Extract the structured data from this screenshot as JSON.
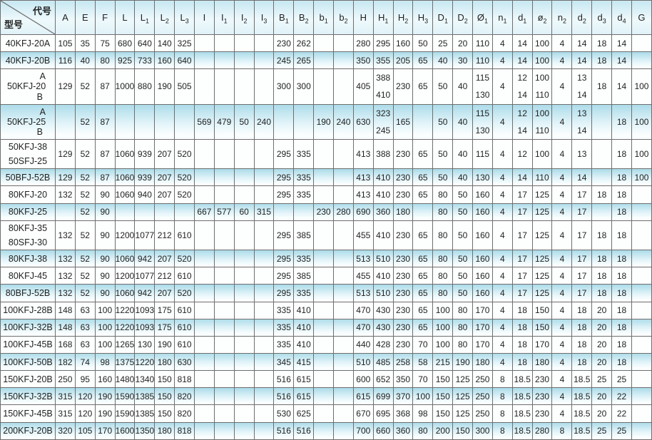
{
  "table": {
    "corner": {
      "top_right": "代号",
      "bottom_left": "型号"
    },
    "columns": [
      {
        "b": "A",
        "s": ""
      },
      {
        "b": "E",
        "s": ""
      },
      {
        "b": "F",
        "s": ""
      },
      {
        "b": "L",
        "s": ""
      },
      {
        "b": "L",
        "s": "1"
      },
      {
        "b": "L",
        "s": "2"
      },
      {
        "b": "L",
        "s": "3"
      },
      {
        "b": "I",
        "s": ""
      },
      {
        "b": "I",
        "s": "1"
      },
      {
        "b": "I",
        "s": "2"
      },
      {
        "b": "I",
        "s": "3"
      },
      {
        "b": "B",
        "s": "1"
      },
      {
        "b": "B",
        "s": "2"
      },
      {
        "b": "b",
        "s": "1"
      },
      {
        "b": "b",
        "s": "2"
      },
      {
        "b": "H",
        "s": ""
      },
      {
        "b": "H",
        "s": "1"
      },
      {
        "b": "H",
        "s": "2"
      },
      {
        "b": "H",
        "s": "3"
      },
      {
        "b": "D",
        "s": "1"
      },
      {
        "b": "D",
        "s": "2"
      },
      {
        "b": "Ø",
        "s": "1"
      },
      {
        "b": "n",
        "s": "1"
      },
      {
        "b": "d",
        "s": "1"
      },
      {
        "b": "ø",
        "s": "2"
      },
      {
        "b": "n",
        "s": "2"
      },
      {
        "b": "d",
        "s": "2"
      },
      {
        "b": "d",
        "s": "3"
      },
      {
        "b": "d",
        "s": "4"
      },
      {
        "b": "G",
        "s": ""
      }
    ],
    "rows": [
      {
        "model": [
          "40KFJ-20A"
        ],
        "shaded": false,
        "cells": [
          "105",
          "35",
          "75",
          "680",
          "640",
          "140",
          "325",
          "",
          "",
          "",
          "",
          "230",
          "262",
          "",
          "",
          "280",
          "295",
          "160",
          "50",
          "25",
          "20",
          "110",
          "4",
          "14",
          "100",
          "4",
          "14",
          "18",
          "14",
          ""
        ]
      },
      {
        "model": [
          "40KFJ-20B"
        ],
        "shaded": true,
        "cells": [
          "116",
          "40",
          "80",
          "925",
          "733",
          "160",
          "640",
          "",
          "",
          "",
          "",
          "245",
          "265",
          "",
          "",
          "350",
          "355",
          "205",
          "65",
          "40",
          "30",
          "110",
          "4",
          "14",
          "100",
          "4",
          "14",
          "18",
          "14",
          ""
        ]
      },
      {
        "model": [
          "50KFJ-20"
        ],
        "ab": [
          "A",
          "B"
        ],
        "shaded": false,
        "cells": [
          "129",
          "52",
          "87",
          "1000",
          "880",
          "190",
          "505",
          "",
          "",
          "",
          "",
          "300",
          "300",
          "",
          "",
          "405",
          [
            "388",
            "410"
          ],
          "230",
          "65",
          "50",
          "40",
          [
            "115",
            "130"
          ],
          "4",
          [
            "12",
            "14"
          ],
          [
            "100",
            "110"
          ],
          "4",
          [
            "13",
            "14"
          ],
          "18",
          "14",
          "100"
        ]
      },
      {
        "model": [
          "50KFJ-25"
        ],
        "ab": [
          "A",
          "B"
        ],
        "shaded": true,
        "cells": [
          "",
          "52",
          "87",
          "",
          "",
          "",
          "",
          "569",
          "479",
          "50",
          "240",
          "",
          "",
          "190",
          "240",
          "630",
          [
            "323",
            "245"
          ],
          "165",
          "",
          "50",
          "40",
          [
            "115",
            "130"
          ],
          "4",
          [
            "12",
            "14"
          ],
          [
            "100",
            "110"
          ],
          "4",
          [
            "13",
            "14"
          ],
          "",
          "18",
          "100"
        ]
      },
      {
        "model": [
          "50KFJ-38",
          "50SFJ-25"
        ],
        "shaded": false,
        "cells": [
          "129",
          "52",
          "87",
          "1060",
          "939",
          "207",
          "520",
          "",
          "",
          "",
          "",
          "295",
          "335",
          "",
          "",
          "413",
          "388",
          "230",
          "65",
          "50",
          "40",
          "115",
          "4",
          "12",
          "100",
          "4",
          "13",
          "",
          "18",
          "100"
        ]
      },
      {
        "model": [
          "50BFJ-52B"
        ],
        "shaded": true,
        "cells": [
          "129",
          "52",
          "87",
          "1060",
          "939",
          "207",
          "520",
          "",
          "",
          "",
          "",
          "295",
          "335",
          "",
          "",
          "413",
          "410",
          "230",
          "65",
          "50",
          "40",
          "130",
          "4",
          "14",
          "110",
          "4",
          "14",
          "",
          "18",
          "100"
        ]
      },
      {
        "model": [
          "80KFJ-20"
        ],
        "shaded": false,
        "cells": [
          "132",
          "52",
          "90",
          "1060",
          "940",
          "207",
          "520",
          "",
          "",
          "",
          "",
          "295",
          "335",
          "",
          "",
          "413",
          "410",
          "230",
          "65",
          "80",
          "50",
          "160",
          "4",
          "17",
          "125",
          "4",
          "17",
          "18",
          "18",
          ""
        ]
      },
      {
        "model": [
          "80KFJ-25"
        ],
        "shaded": true,
        "cells": [
          "",
          "52",
          "90",
          "",
          "",
          "",
          "",
          "667",
          "577",
          "60",
          "315",
          "",
          "",
          "230",
          "280",
          "690",
          "360",
          "180",
          "",
          "80",
          "50",
          "160",
          "4",
          "17",
          "125",
          "4",
          "17",
          "",
          "18",
          ""
        ]
      },
      {
        "model": [
          "80KFJ-35",
          "80SFJ-30"
        ],
        "shaded": false,
        "cells": [
          "132",
          "52",
          "90",
          "1200",
          "1077",
          "212",
          "610",
          "",
          "",
          "",
          "",
          "295",
          "385",
          "",
          "",
          "455",
          "410",
          "230",
          "65",
          "80",
          "50",
          "160",
          "4",
          "17",
          "125",
          "4",
          "17",
          "18",
          "18",
          ""
        ]
      },
      {
        "model": [
          "80KFJ-38"
        ],
        "shaded": true,
        "cells": [
          "132",
          "52",
          "90",
          "1060",
          "942",
          "207",
          "520",
          "",
          "",
          "",
          "",
          "295",
          "335",
          "",
          "",
          "513",
          "510",
          "230",
          "65",
          "80",
          "50",
          "160",
          "4",
          "17",
          "125",
          "4",
          "17",
          "18",
          "18",
          ""
        ]
      },
      {
        "model": [
          "80KFJ-45"
        ],
        "shaded": false,
        "cells": [
          "132",
          "52",
          "90",
          "1200",
          "1077",
          "212",
          "610",
          "",
          "",
          "",
          "",
          "295",
          "385",
          "",
          "",
          "455",
          "410",
          "230",
          "65",
          "80",
          "50",
          "160",
          "4",
          "17",
          "125",
          "4",
          "17",
          "18",
          "18",
          ""
        ]
      },
      {
        "model": [
          "80BFJ-52B"
        ],
        "shaded": true,
        "cells": [
          "132",
          "52",
          "90",
          "1060",
          "942",
          "207",
          "520",
          "",
          "",
          "",
          "",
          "295",
          "335",
          "",
          "",
          "513",
          "510",
          "230",
          "65",
          "80",
          "50",
          "160",
          "4",
          "17",
          "125",
          "4",
          "17",
          "18",
          "18",
          ""
        ]
      },
      {
        "model": [
          "100KFJ-28B"
        ],
        "shaded": false,
        "cells": [
          "148",
          "63",
          "100",
          "1220",
          "1093",
          "175",
          "610",
          "",
          "",
          "",
          "",
          "335",
          "410",
          "",
          "",
          "470",
          "430",
          "230",
          "65",
          "100",
          "80",
          "170",
          "4",
          "18",
          "150",
          "4",
          "18",
          "20",
          "18",
          ""
        ]
      },
      {
        "model": [
          "100KFJ-32B"
        ],
        "shaded": true,
        "cells": [
          "148",
          "63",
          "100",
          "1220",
          "1093",
          "175",
          "610",
          "",
          "",
          "",
          "",
          "335",
          "410",
          "",
          "",
          "470",
          "430",
          "230",
          "65",
          "100",
          "80",
          "170",
          "4",
          "18",
          "150",
          "4",
          "18",
          "20",
          "18",
          ""
        ]
      },
      {
        "model": [
          "100KFJ-45B"
        ],
        "shaded": false,
        "cells": [
          "168",
          "63",
          "100",
          "1265",
          "130",
          "190",
          "610",
          "",
          "",
          "",
          "",
          "335",
          "410",
          "",
          "",
          "440",
          "428",
          "230",
          "70",
          "100",
          "80",
          "170",
          "4",
          "18",
          "170",
          "4",
          "18",
          "20",
          "18",
          ""
        ]
      },
      {
        "model": [
          "100KFJ-50B"
        ],
        "shaded": true,
        "cells": [
          "182",
          "74",
          "98",
          "1375",
          "1220",
          "180",
          "630",
          "",
          "",
          "",
          "",
          "345",
          "415",
          "",
          "",
          "510",
          "485",
          "258",
          "58",
          "215",
          "190",
          "180",
          "4",
          "18",
          "180",
          "4",
          "18",
          "20",
          "18",
          ""
        ]
      },
      {
        "model": [
          "150KFJ-20B"
        ],
        "shaded": false,
        "cells": [
          "250",
          "95",
          "160",
          "1480",
          "1340",
          "150",
          "818",
          "",
          "",
          "",
          "",
          "516",
          "615",
          "",
          "",
          "600",
          "652",
          "350",
          "70",
          "150",
          "125",
          "250",
          "8",
          "18.5",
          "230",
          "4",
          "18.5",
          "25",
          "25",
          ""
        ]
      },
      {
        "model": [
          "150KFJ-32B"
        ],
        "shaded": true,
        "cells": [
          "315",
          "120",
          "190",
          "1590",
          "1385",
          "150",
          "820",
          "",
          "",
          "",
          "",
          "516",
          "615",
          "",
          "",
          "615",
          "699",
          "370",
          "100",
          "150",
          "125",
          "250",
          "8",
          "18.5",
          "230",
          "4",
          "18.5",
          "20",
          "22",
          ""
        ]
      },
      {
        "model": [
          "150KFJ-45B"
        ],
        "shaded": false,
        "cells": [
          "315",
          "120",
          "190",
          "1590",
          "1385",
          "150",
          "820",
          "",
          "",
          "",
          "",
          "530",
          "625",
          "",
          "",
          "670",
          "695",
          "368",
          "98",
          "150",
          "125",
          "250",
          "8",
          "18.5",
          "230",
          "4",
          "18.5",
          "20",
          "22",
          ""
        ]
      },
      {
        "model": [
          "200KFJ-20B"
        ],
        "shaded": true,
        "cells": [
          "320",
          "105",
          "170",
          "1600",
          "1350",
          "180",
          "818",
          "",
          "",
          "",
          "",
          "516",
          "516",
          "",
          "",
          "700",
          "660",
          "360",
          "80",
          "200",
          "150",
          "300",
          "8",
          "18.5",
          "280",
          "8",
          "18.5",
          "25",
          "25",
          ""
        ]
      }
    ]
  },
  "colors": {
    "band_top": "#abdbe9",
    "band_bottom": "#fbfeff",
    "header_top": "#c7e8f2",
    "grid_line": "#6e6e6e",
    "text": "#1f1f1f"
  }
}
